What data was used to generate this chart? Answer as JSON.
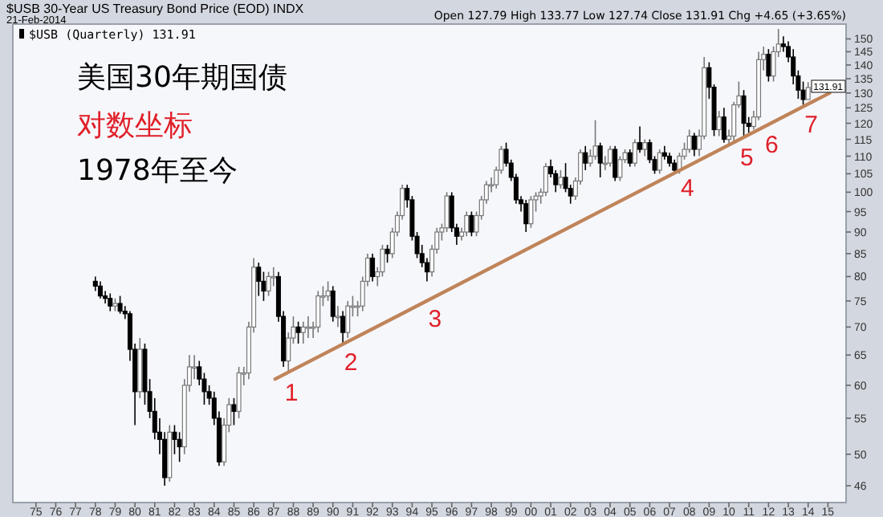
{
  "chart_data": {
    "type": "candlestick",
    "title": "$USB 30-Year US Treasury Bond Price (EOD) INDX",
    "subtitle": "21-Feb-2014",
    "legend": "top left",
    "xlim": [
      "1973-11",
      "2015-12"
    ],
    "xticks": [
      {
        "value": "1975",
        "label": "75"
      },
      {
        "value": "1976",
        "label": "76"
      },
      {
        "value": "1977",
        "label": "77"
      },
      {
        "value": "1978",
        "label": "78"
      },
      {
        "value": "1979",
        "label": "79"
      },
      {
        "value": "1980",
        "label": "80"
      },
      {
        "value": "1981",
        "label": "81"
      },
      {
        "value": "1982",
        "label": "82"
      },
      {
        "value": "1983",
        "label": "83"
      },
      {
        "value": "1984",
        "label": "84"
      },
      {
        "value": "1985",
        "label": "85"
      },
      {
        "value": "1986",
        "label": "86"
      },
      {
        "value": "1987",
        "label": "87"
      },
      {
        "value": "1988",
        "label": "88"
      },
      {
        "value": "1989",
        "label": "89"
      },
      {
        "value": "1990",
        "label": "90"
      },
      {
        "value": "1991",
        "label": "91"
      },
      {
        "value": "1992",
        "label": "92"
      },
      {
        "value": "1993",
        "label": "93"
      },
      {
        "value": "1994",
        "label": "94"
      },
      {
        "value": "1995",
        "label": "95"
      },
      {
        "value": "1996",
        "label": "96"
      },
      {
        "value": "1997",
        "label": "97"
      },
      {
        "value": "1998",
        "label": "98"
      },
      {
        "value": "1999",
        "label": "99"
      },
      {
        "value": "2000",
        "label": "00"
      },
      {
        "value": "2001",
        "label": "01"
      },
      {
        "value": "2002",
        "label": "02"
      },
      {
        "value": "2003",
        "label": "03"
      },
      {
        "value": "2004",
        "label": "04"
      },
      {
        "value": "2005",
        "label": "05"
      },
      {
        "value": "2006",
        "label": "06"
      },
      {
        "value": "2007",
        "label": "07"
      },
      {
        "value": "2008",
        "label": "08"
      },
      {
        "value": "2009",
        "label": "09"
      },
      {
        "value": "2010",
        "label": "10"
      },
      {
        "value": "2011",
        "label": "11"
      },
      {
        "value": "2012",
        "label": "12"
      },
      {
        "value": "2013",
        "label": "13"
      },
      {
        "value": "2014",
        "label": "14"
      },
      {
        "value": "2015",
        "label": "15"
      }
    ],
    "log": true,
    "ylim": [
      44,
      156
    ],
    "yticks": [
      46,
      50,
      55,
      60,
      65,
      70,
      75,
      80,
      85,
      90,
      95,
      100,
      105,
      110,
      115,
      120,
      125,
      130,
      135,
      140,
      145,
      150
    ],
    "series": [
      {
        "name": "$USB (Quarterly) 131.91",
        "x": [
          "1978-01",
          "1978-04",
          "1978-07",
          "1978-10",
          "1979-01",
          "1979-04",
          "1979-07",
          "1979-10",
          "1980-01",
          "1980-04",
          "1980-07",
          "1980-10",
          "1981-01",
          "1981-04",
          "1981-07",
          "1981-10",
          "1982-01",
          "1982-04",
          "1982-07",
          "1982-10",
          "1983-01",
          "1983-04",
          "1983-07",
          "1983-10",
          "1984-01",
          "1984-04",
          "1984-07",
          "1984-10",
          "1985-01",
          "1985-04",
          "1985-07",
          "1985-10",
          "1986-01",
          "1986-04",
          "1986-07",
          "1986-10",
          "1987-01",
          "1987-04",
          "1987-07",
          "1987-10",
          "1988-01",
          "1988-04",
          "1988-07",
          "1988-10",
          "1989-01",
          "1989-04",
          "1989-07",
          "1989-10",
          "1990-01",
          "1990-04",
          "1990-07",
          "1990-10",
          "1991-01",
          "1991-04",
          "1991-07",
          "1991-10",
          "1992-01",
          "1992-04",
          "1992-07",
          "1992-10",
          "1993-01",
          "1993-04",
          "1993-07",
          "1993-10",
          "1994-01",
          "1994-04",
          "1994-07",
          "1994-10",
          "1995-01",
          "1995-04",
          "1995-07",
          "1995-10",
          "1996-01",
          "1996-04",
          "1996-07",
          "1996-10",
          "1997-01",
          "1997-04",
          "1997-07",
          "1997-10",
          "1998-01",
          "1998-04",
          "1998-07",
          "1998-10",
          "1999-01",
          "1999-04",
          "1999-07",
          "1999-10",
          "2000-01",
          "2000-04",
          "2000-07",
          "2000-10",
          "2001-01",
          "2001-04",
          "2001-07",
          "2001-10",
          "2002-01",
          "2002-04",
          "2002-07",
          "2002-10",
          "2003-01",
          "2003-04",
          "2003-07",
          "2003-10",
          "2004-01",
          "2004-04",
          "2004-07",
          "2004-10",
          "2005-01",
          "2005-04",
          "2005-07",
          "2005-10",
          "2006-01",
          "2006-04",
          "2006-07",
          "2006-10",
          "2007-01",
          "2007-04",
          "2007-07",
          "2007-10",
          "2008-01",
          "2008-04",
          "2008-07",
          "2008-10",
          "2009-01",
          "2009-04",
          "2009-07",
          "2009-10",
          "2010-01",
          "2010-04",
          "2010-07",
          "2010-10",
          "2011-01",
          "2011-04",
          "2011-07",
          "2011-10",
          "2012-01",
          "2012-04",
          "2012-07",
          "2012-10",
          "2013-01",
          "2013-04",
          "2013-07",
          "2013-10",
          "2014-01"
        ],
        "ohlc": [
          [
            79,
            80,
            77,
            78
          ],
          [
            78,
            79,
            75.5,
            76
          ],
          [
            76,
            77,
            74.5,
            75.5
          ],
          [
            75.5,
            76.5,
            73,
            74
          ],
          [
            74,
            75.5,
            73,
            74.5
          ],
          [
            74.5,
            76,
            72.5,
            73
          ],
          [
            73,
            74,
            71.5,
            72.5
          ],
          [
            72.5,
            73,
            64,
            66
          ],
          [
            66,
            67,
            54,
            59
          ],
          [
            59,
            68,
            58,
            66
          ],
          [
            66,
            67,
            57,
            59
          ],
          [
            59,
            61,
            55,
            56
          ],
          [
            56,
            58,
            52,
            53
          ],
          [
            53,
            55,
            50,
            52
          ],
          [
            52,
            53,
            46,
            47
          ],
          [
            47,
            54,
            46.5,
            53
          ],
          [
            53,
            54,
            50,
            52
          ],
          [
            52,
            53,
            49,
            51
          ],
          [
            51,
            61,
            50,
            60
          ],
          [
            60,
            65,
            59,
            63
          ],
          [
            63,
            65,
            61,
            63
          ],
          [
            63,
            64,
            60,
            61
          ],
          [
            61,
            62,
            57,
            59
          ],
          [
            59,
            60,
            57,
            58
          ],
          [
            58,
            59,
            54,
            55
          ],
          [
            55,
            56,
            48.5,
            49
          ],
          [
            49,
            55,
            48.5,
            54
          ],
          [
            54,
            58,
            53,
            57
          ],
          [
            57,
            58,
            54,
            56
          ],
          [
            56,
            63,
            55,
            62
          ],
          [
            62,
            63,
            60,
            62
          ],
          [
            62,
            71,
            61,
            70
          ],
          [
            70,
            84,
            69,
            82
          ],
          [
            82,
            83,
            76,
            79
          ],
          [
            79,
            81,
            75,
            77
          ],
          [
            77,
            81,
            76,
            80
          ],
          [
            80,
            82,
            78,
            80
          ],
          [
            80,
            81,
            71,
            72
          ],
          [
            72,
            73,
            63,
            64
          ],
          [
            64,
            69,
            62,
            68
          ],
          [
            68,
            72,
            67,
            70
          ],
          [
            70,
            71,
            67,
            69
          ],
          [
            69,
            71,
            67,
            70
          ],
          [
            70,
            72,
            68,
            70
          ],
          [
            70,
            71,
            68,
            70
          ],
          [
            70,
            77,
            69,
            76
          ],
          [
            76,
            78,
            74,
            76
          ],
          [
            76,
            79,
            75,
            77
          ],
          [
            77,
            78,
            71,
            72
          ],
          [
            72,
            74,
            70,
            72
          ],
          [
            72,
            73,
            67,
            69
          ],
          [
            69,
            75,
            68,
            74
          ],
          [
            74,
            76,
            72,
            74
          ],
          [
            74,
            75,
            72,
            74
          ],
          [
            74,
            80,
            73,
            79
          ],
          [
            79,
            85,
            78,
            84
          ],
          [
            84,
            85,
            79,
            80
          ],
          [
            80,
            82,
            78,
            81
          ],
          [
            81,
            87,
            80,
            86
          ],
          [
            86,
            87,
            83,
            85
          ],
          [
            85,
            91,
            84,
            90
          ],
          [
            90,
            95,
            89,
            94
          ],
          [
            94,
            102,
            93,
            101
          ],
          [
            101,
            102,
            96,
            98
          ],
          [
            98,
            99,
            88,
            89
          ],
          [
            89,
            90,
            84,
            85
          ],
          [
            85,
            87,
            82,
            83
          ],
          [
            83,
            84,
            79,
            81
          ],
          [
            81,
            87,
            80,
            86
          ],
          [
            86,
            91,
            85,
            90
          ],
          [
            90,
            92,
            88,
            91
          ],
          [
            91,
            100,
            90,
            99
          ],
          [
            99,
            100,
            90,
            91
          ],
          [
            91,
            92,
            87,
            89
          ],
          [
            89,
            91,
            88,
            90
          ],
          [
            90,
            95,
            89,
            94
          ],
          [
            94,
            95,
            89,
            90
          ],
          [
            90,
            95,
            89,
            94
          ],
          [
            94,
            99,
            93,
            98
          ],
          [
            98,
            103,
            97,
            102
          ],
          [
            102,
            104,
            100,
            102
          ],
          [
            102,
            107,
            101,
            106
          ],
          [
            106,
            113,
            105,
            112
          ],
          [
            112,
            114,
            107,
            108
          ],
          [
            108,
            109,
            103,
            104
          ],
          [
            104,
            105,
            97,
            98
          ],
          [
            98,
            99,
            95,
            97
          ],
          [
            97,
            98,
            90,
            92
          ],
          [
            92,
            99,
            91,
            98
          ],
          [
            98,
            100,
            95,
            99
          ],
          [
            99,
            101,
            97,
            100
          ],
          [
            100,
            108,
            99,
            107
          ],
          [
            107,
            109,
            104,
            105
          ],
          [
            105,
            106,
            100,
            102
          ],
          [
            102,
            106,
            101,
            104
          ],
          [
            104,
            108,
            100,
            101
          ],
          [
            101,
            102,
            97,
            99
          ],
          [
            99,
            104,
            98,
            103
          ],
          [
            103,
            112,
            102,
            111
          ],
          [
            111,
            113,
            106,
            108
          ],
          [
            108,
            112,
            107,
            110
          ],
          [
            110,
            121,
            109,
            113
          ],
          [
            113,
            114,
            104,
            108
          ],
          [
            108,
            110,
            106,
            108
          ],
          [
            108,
            113,
            107,
            112
          ],
          [
            112,
            113,
            103,
            104
          ],
          [
            104,
            110,
            103,
            109
          ],
          [
            109,
            112,
            108,
            111
          ],
          [
            111,
            112,
            107,
            108
          ],
          [
            108,
            115,
            107,
            114
          ],
          [
            114,
            119,
            111,
            112
          ],
          [
            112,
            115,
            110,
            114
          ],
          [
            114,
            115,
            108,
            109
          ],
          [
            109,
            110,
            105,
            106
          ],
          [
            106,
            112,
            105,
            111
          ],
          [
            111,
            113,
            109,
            110
          ],
          [
            110,
            111,
            107,
            108
          ],
          [
            108,
            109,
            105,
            106
          ],
          [
            106,
            111,
            105,
            110
          ],
          [
            110,
            114,
            109,
            112
          ],
          [
            112,
            118,
            111,
            116
          ],
          [
            116,
            117,
            110,
            112
          ],
          [
            112,
            118,
            110,
            116
          ],
          [
            116,
            143,
            115,
            139
          ],
          [
            139,
            141,
            128,
            132
          ],
          [
            132,
            133,
            116,
            118
          ],
          [
            118,
            124,
            116,
            122
          ],
          [
            122,
            125,
            114,
            115
          ],
          [
            115,
            118,
            113,
            116
          ],
          [
            116,
            127,
            114,
            126
          ],
          [
            126,
            134,
            125,
            129
          ],
          [
            129,
            131,
            116,
            120
          ],
          [
            120,
            122,
            117,
            119
          ],
          [
            119,
            124,
            118,
            122
          ],
          [
            122,
            145,
            121,
            142
          ],
          [
            142,
            147,
            138,
            144
          ],
          [
            144,
            146,
            134,
            136
          ],
          [
            136,
            147,
            134,
            145
          ],
          [
            145,
            154,
            143,
            148
          ],
          [
            148,
            151,
            145,
            147
          ],
          [
            147,
            149,
            141,
            143
          ],
          [
            143,
            146,
            133,
            136
          ],
          [
            136,
            138,
            128,
            131
          ],
          [
            131,
            134,
            126,
            127.79
          ],
          [
            127.79,
            133.77,
            127.74,
            131.91
          ]
        ]
      },
      {
        "type": "line",
        "color": "#c0845a",
        "x": [
          "1987-02",
          "2015-02"
        ],
        "values": [
          61,
          130
        ]
      }
    ],
    "annotations": [
      "Open 127.79 High 133.77 Low 127.74 Close 131.91 Chg +4.65 (+3.65%)",
      "美国30年期国债",
      "对数坐标",
      "1978年至今",
      {
        "text": "1",
        "x": "1987-07",
        "y": 61.7
      },
      {
        "text": "2",
        "x": "1990-07",
        "y": 66.9
      },
      {
        "text": "3",
        "x": "1994-10",
        "y": 75.0
      },
      {
        "text": "4",
        "x": "2007-07",
        "y": 105.9
      },
      {
        "text": "5",
        "x": "2010-07",
        "y": 114.8
      },
      {
        "text": "6",
        "x": "2011-10",
        "y": 118.8
      },
      {
        "text": "7",
        "x": "2013-10",
        "y": 125.4
      },
      "131.91"
    ]
  }
}
